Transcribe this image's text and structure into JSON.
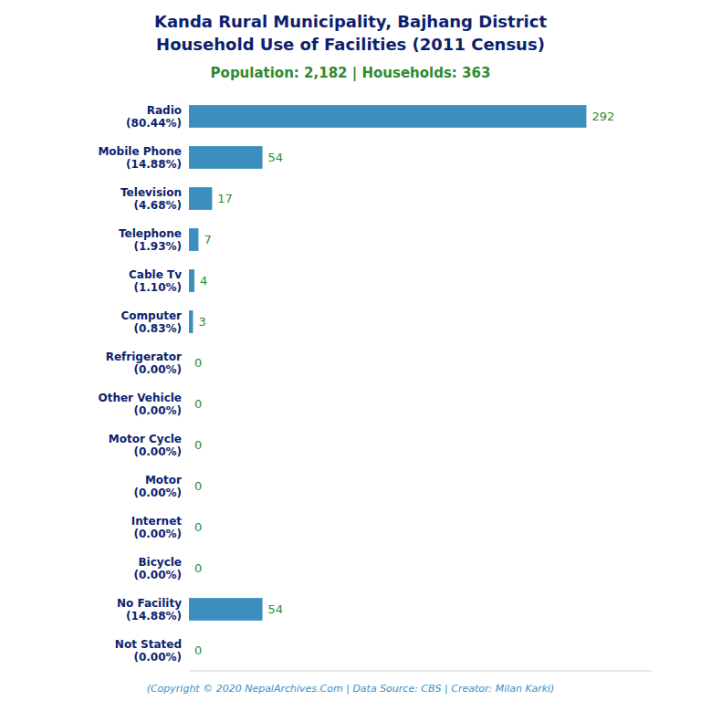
{
  "chart_data": {
    "type": "bar",
    "orientation": "horizontal",
    "title": "Kanda Rural Municipality, Bajhang District\nHousehold Use of Facilities (2011 Census)",
    "subtitle": "Population: 2,182 | Households: 363",
    "annotations": [
      "(Copyright © 2020 NepalArchives.Com | Data Source: CBS | Creator: Milan Karki)"
    ],
    "categories": [
      "Radio\n(80.44%)",
      "Mobile Phone\n(14.88%)",
      "Television\n(4.68%)",
      "Telephone\n(1.93%)",
      "Cable Tv\n(1.10%)",
      "Computer\n(0.83%)",
      "Refrigerator\n(0.00%)",
      "Other Vehicle\n(0.00%)",
      "Motor Cycle\n(0.00%)",
      "Motor\n(0.00%)",
      "Internet\n(0.00%)",
      "Bicycle\n(0.00%)",
      "No Facility\n(14.88%)",
      "Not Stated\n(0.00%)"
    ],
    "values": [
      292,
      54,
      17,
      7,
      4,
      3,
      0,
      0,
      0,
      0,
      0,
      0,
      54,
      0
    ],
    "color": "#3a8fbf",
    "xlim": [
      0,
      340
    ],
    "data_labels": true,
    "grid": false,
    "tick_labels": "y"
  }
}
